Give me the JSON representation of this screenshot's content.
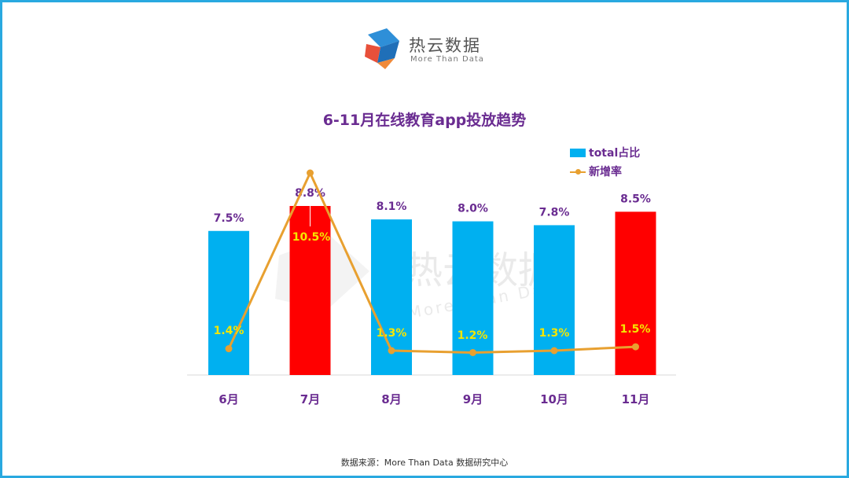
{
  "logo": {
    "name": "热云数据",
    "tagline": "More Than Data",
    "icon": "reyun-logo-icon"
  },
  "watermark": {
    "name": "热云数据",
    "tagline": "More Than Data"
  },
  "footer": {
    "source": "数据来源：More  Than  Data  数据研究中心"
  },
  "colors": {
    "bar_default": "#00b0f0",
    "bar_highlight": "#ff0000",
    "line": "#e8a030",
    "text": "#6a2c91",
    "line_label": "#f5e600",
    "frame": "#29a9e0"
  },
  "chart_data": {
    "type": "bar",
    "title": "6-11月在线教育app投放趋势",
    "categories": [
      "6月",
      "7月",
      "8月",
      "9月",
      "10月",
      "11月"
    ],
    "series": [
      {
        "name": "total占比",
        "type": "bar",
        "values": [
          7.5,
          8.8,
          8.1,
          8.0,
          7.8,
          8.5
        ],
        "labels": [
          "7.5%",
          "8.8%",
          "8.1%",
          "8.0%",
          "7.8%",
          "8.5%"
        ],
        "highlight": [
          false,
          true,
          false,
          false,
          false,
          true
        ]
      },
      {
        "name": "新增率",
        "type": "line",
        "values": [
          1.4,
          10.5,
          1.3,
          1.2,
          1.3,
          1.5
        ],
        "labels": [
          "1.4%",
          "10.5%",
          "1.3%",
          "1.2%",
          "1.3%",
          "1.5%"
        ]
      }
    ],
    "legend_position": "top-right",
    "grid": false
  }
}
